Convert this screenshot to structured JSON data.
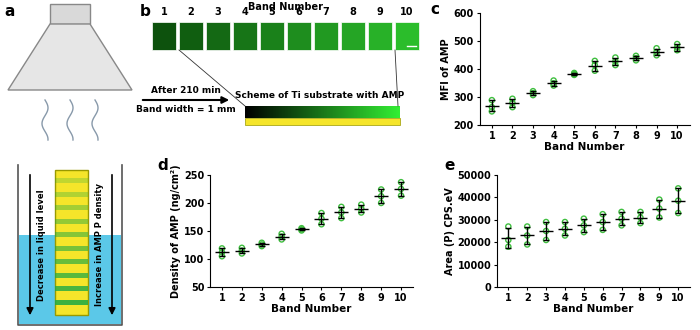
{
  "chart_data": [
    {
      "type": "scatter",
      "annotation": "c",
      "x_label": "Band Number",
      "y_label": "MFI of AMP",
      "categories": [
        "1",
        "2",
        "3",
        "4",
        "5",
        "6",
        "7",
        "8",
        "9",
        "10"
      ],
      "values": [
        [
          250,
          265,
          290
        ],
        [
          265,
          280,
          295
        ],
        [
          308,
          315,
          322
        ],
        [
          342,
          350,
          360
        ],
        [
          380,
          383,
          387
        ],
        [
          395,
          415,
          430
        ],
        [
          415,
          428,
          442
        ],
        [
          432,
          440,
          448
        ],
        [
          450,
          462,
          475
        ],
        [
          468,
          478,
          490
        ]
      ],
      "mean": [
        270,
        280,
        315,
        350,
        383,
        413,
        428,
        440,
        462,
        478
      ],
      "error": [
        20,
        15,
        7,
        9,
        4,
        18,
        14,
        8,
        12,
        11
      ],
      "color": "#3fbf3f",
      "marker": "o",
      "ylim": [
        200,
        600
      ],
      "yticks": [
        200,
        300,
        400,
        500,
        600
      ]
    },
    {
      "type": "scatter",
      "annotation": "d",
      "x_label": "Band Number",
      "y_label": "Density of AMP (ng/cm²)",
      "categories": [
        "1",
        "2",
        "3",
        "4",
        "5",
        "6",
        "7",
        "8",
        "9",
        "10"
      ],
      "values": [
        [
          105,
          112,
          119
        ],
        [
          110,
          115,
          120
        ],
        [
          123,
          126,
          129
        ],
        [
          135,
          140,
          145
        ],
        [
          151,
          153,
          155
        ],
        [
          162,
          172,
          182
        ],
        [
          173,
          183,
          193
        ],
        [
          183,
          190,
          197
        ],
        [
          200,
          212,
          224
        ],
        [
          213,
          225,
          237
        ]
      ],
      "mean": [
        112,
        115,
        126,
        140,
        153,
        172,
        183,
        190,
        212,
        225
      ],
      "error": [
        7,
        5,
        3,
        5,
        2,
        10,
        10,
        7,
        12,
        12
      ],
      "color": "#3fbf3f",
      "marker": "o",
      "ylim": [
        50,
        250
      ],
      "yticks": [
        50,
        100,
        150,
        200,
        250
      ]
    },
    {
      "type": "scatter",
      "annotation": "e",
      "x_label": "Band Number",
      "y_label": "Area (P) CPS.eV",
      "categories": [
        "1",
        "2",
        "3",
        "4",
        "5",
        "6",
        "7",
        "8",
        "9",
        "10"
      ],
      "values": [
        [
          18000,
          21000,
          27000
        ],
        [
          19000,
          23000,
          27000
        ],
        [
          21000,
          25000,
          29000
        ],
        [
          23000,
          26000,
          29000
        ],
        [
          24500,
          27500,
          30500
        ],
        [
          25500,
          29000,
          32500
        ],
        [
          27500,
          30500,
          33500
        ],
        [
          28500,
          31000,
          33500
        ],
        [
          31000,
          35000,
          39000
        ],
        [
          33000,
          38500,
          44000
        ]
      ],
      "mean": [
        22000,
        23000,
        25000,
        26000,
        27500,
        29000,
        30500,
        31000,
        35000,
        38500
      ],
      "error": [
        4500,
        4000,
        4000,
        3000,
        3000,
        3500,
        3000,
        2500,
        4000,
        5500
      ],
      "color": "#3fbf3f",
      "marker": "o",
      "ylim": [
        0,
        50000
      ],
      "yticks": [
        0,
        10000,
        20000,
        30000,
        40000,
        50000
      ]
    }
  ],
  "diagram": {
    "panel_a": {
      "label": "a",
      "left_arrow": "Decrease in liquid level",
      "right_arrow": "Increase in AMP P density"
    },
    "transition": {
      "above": "After 210 min",
      "below": "Band width = 1 mm"
    },
    "panel_b": {
      "label": "b",
      "title": "Band Number",
      "bands": [
        1,
        2,
        3,
        4,
        5,
        6,
        7,
        8,
        9,
        10
      ],
      "scheme": "Scheme of Ti substrate with AMP"
    }
  }
}
